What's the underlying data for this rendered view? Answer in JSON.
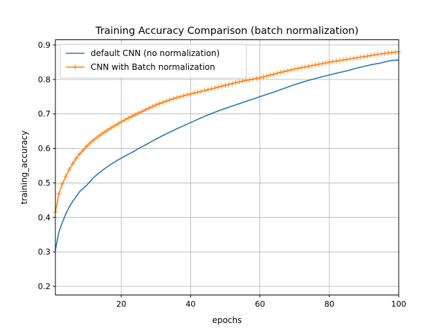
{
  "chart_data": {
    "type": "line",
    "title": "Training Accuracy Comparison (batch normalization)",
    "xlabel": "epochs",
    "ylabel": "training_accuracy",
    "xlim": [
      1,
      100
    ],
    "ylim": [
      0.175,
      0.915
    ],
    "xticks": [
      20,
      40,
      60,
      80,
      100
    ],
    "yticks": [
      0.2,
      0.3,
      0.4,
      0.5,
      0.6,
      0.7,
      0.8,
      0.9
    ],
    "grid": true,
    "legend": "upper-left",
    "series": [
      {
        "name": "default CNN (no normalization)",
        "color": "#1f77b4",
        "marker": "none",
        "x": [
          1,
          2,
          3,
          4,
          5,
          6,
          7,
          8,
          10,
          12,
          14,
          16,
          18,
          20,
          22,
          25,
          30,
          35,
          40,
          45,
          50,
          55,
          60,
          65,
          70,
          75,
          80,
          85,
          90,
          95,
          98,
          100
        ],
        "y": [
          0.305,
          0.357,
          0.385,
          0.41,
          0.43,
          0.447,
          0.46,
          0.475,
          0.493,
          0.515,
          0.532,
          0.547,
          0.56,
          0.572,
          0.583,
          0.6,
          0.627,
          0.652,
          0.675,
          0.697,
          0.716,
          0.733,
          0.75,
          0.767,
          0.785,
          0.8,
          0.813,
          0.825,
          0.838,
          0.848,
          0.855,
          0.856
        ]
      },
      {
        "name": "CNN with Batch normalization",
        "color": "#ff7f0e",
        "marker": "+",
        "x": [
          1,
          2,
          3,
          4,
          5,
          6,
          7,
          8,
          10,
          12,
          14,
          16,
          18,
          20,
          22,
          25,
          30,
          35,
          40,
          45,
          50,
          55,
          60,
          65,
          70,
          75,
          80,
          85,
          90,
          95,
          98,
          100
        ],
        "y": [
          0.415,
          0.468,
          0.497,
          0.519,
          0.539,
          0.556,
          0.571,
          0.584,
          0.606,
          0.624,
          0.639,
          0.653,
          0.665,
          0.677,
          0.688,
          0.703,
          0.726,
          0.744,
          0.758,
          0.77,
          0.783,
          0.795,
          0.805,
          0.818,
          0.83,
          0.84,
          0.85,
          0.858,
          0.866,
          0.874,
          0.878,
          0.88
        ]
      }
    ]
  }
}
